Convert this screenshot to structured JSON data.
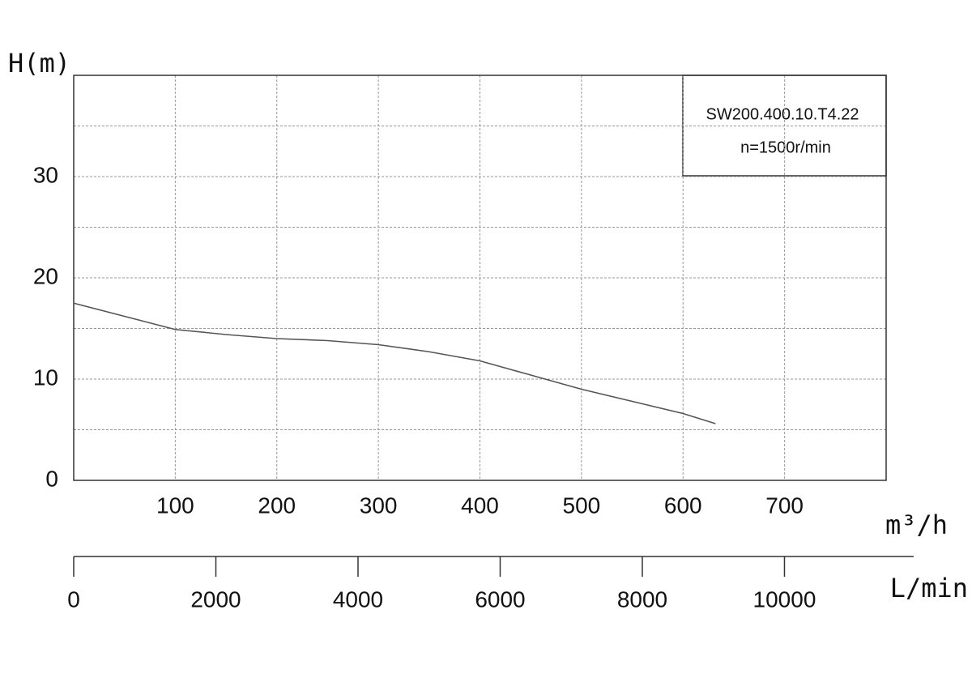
{
  "chart_data": {
    "type": "line",
    "y_label": "H(m)",
    "x_label": "m³/h",
    "x2_label": "L/min",
    "annotation": [
      "SW200.400.10.T4.22",
      "n=1500r/min"
    ],
    "x": [
      0,
      50,
      100,
      150,
      200,
      250,
      300,
      350,
      400,
      450,
      500,
      550,
      600,
      632
    ],
    "series": [
      {
        "color": "#555555",
        "values": [
          17.5,
          16.2,
          14.9,
          14.4,
          14.0,
          13.8,
          13.4,
          12.7,
          11.8,
          10.4,
          9.0,
          7.8,
          6.6,
          5.6
        ]
      }
    ],
    "xlim": [
      0,
      800
    ],
    "xticks": [
      100,
      200,
      300,
      400,
      500,
      600,
      700
    ],
    "ylim": [
      0,
      40
    ],
    "yticks": [
      0,
      10,
      20,
      30
    ],
    "y_minor_gridlines": [
      5,
      15,
      25,
      35
    ],
    "x2lim": [
      0,
      11818
    ],
    "x2ticks": [
      0,
      2000,
      4000,
      6000,
      8000,
      10000
    ],
    "grid": true
  }
}
